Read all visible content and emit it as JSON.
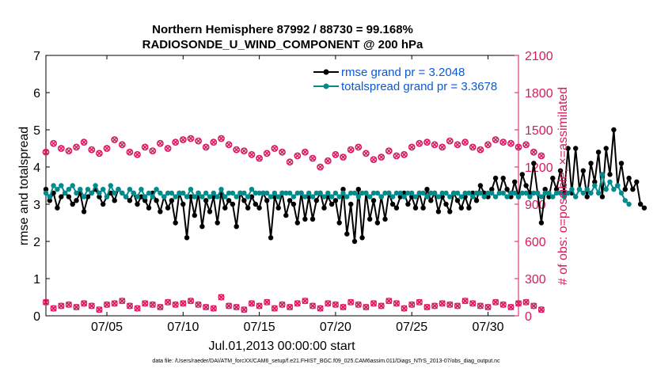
{
  "chart_data": {
    "type": "line",
    "title_line1": "Northern Hemisphere 87992 / 88730 = 99.168%",
    "title_line2": "RADIOSONDE_U_WIND_COMPONENT @ 200 hPa",
    "xlabel": "Jul.01,2013 00:00:00 start",
    "ylabel_left": "rmse and totalspread",
    "ylabel_right": "# of obs: o=possible; ×=assimilated",
    "xlim": [
      1,
      32
    ],
    "ylim_left": [
      0,
      7
    ],
    "ylim_right": [
      0,
      2100
    ],
    "x_ticks": [
      5,
      10,
      15,
      20,
      25,
      30
    ],
    "x_tick_labels": [
      "07/05",
      "07/10",
      "07/15",
      "07/20",
      "07/25",
      "07/30"
    ],
    "y_ticks_left": [
      "0",
      "1",
      "2",
      "3",
      "4",
      "5",
      "6",
      "7"
    ],
    "y_ticks_right": [
      "0",
      "300",
      "600",
      "900",
      "1200",
      "1500",
      "1800",
      "2100"
    ],
    "legend": [
      "rmse grand pr = 3.2048",
      "totalspread grand pr = 3.3678"
    ],
    "footnote": "data file: /Users/raeder/DAI/ATM_forcXX/CAM6_setup/f.e21.FHIST_BGC.f09_025.CAM6assim.011/Diags_NTrS_2013-07/obs_diag_output.nc",
    "colors": {
      "rmse": "#000000",
      "spread": "#008c8c",
      "obs": "#d81b60",
      "legend_text": "#0a5ad6",
      "right_axis": "#d81b60"
    },
    "series": [
      {
        "name": "rmse",
        "axis": "left",
        "x_start": 1.0,
        "x_step": 0.25,
        "values": [
          3.4,
          3.1,
          3.3,
          2.9,
          3.2,
          3.3,
          3.2,
          3.0,
          3.1,
          3.3,
          2.8,
          3.2,
          3.3,
          3.4,
          3.2,
          3.0,
          3.2,
          3.3,
          3.1,
          3.4,
          3.3,
          3.2,
          3.1,
          3.3,
          3.0,
          3.2,
          3.1,
          2.9,
          3.3,
          3.1,
          2.8,
          3.2,
          2.9,
          3.1,
          2.5,
          3.3,
          3.0,
          2.1,
          3.2,
          2.7,
          3.3,
          2.4,
          3.1,
          2.8,
          3.2,
          2.5,
          3.3,
          2.9,
          3.1,
          3.0,
          2.4,
          3.3,
          3.1,
          2.9,
          3.2,
          3.0,
          2.9,
          3.3,
          3.1,
          2.1,
          3.2,
          2.9,
          3.3,
          2.7,
          3.1,
          3.0,
          2.5,
          3.3,
          2.6,
          3.2,
          2.6,
          3.1,
          3.3,
          2.9,
          3.2,
          3.0,
          3.1,
          2.5,
          3.4,
          2.2,
          3.0,
          2.0,
          3.4,
          2.1,
          3.3,
          2.6,
          3.1,
          2.5,
          3.2,
          2.6,
          3.3,
          3.0,
          2.9,
          3.2,
          3.3,
          3.0,
          3.2,
          2.9,
          3.3,
          2.9,
          3.4,
          3.1,
          3.3,
          2.8,
          3.2,
          3.0,
          2.8,
          3.3,
          3.1,
          2.9,
          3.2,
          2.9,
          3.3,
          3.1,
          3.5,
          3.3,
          3.2,
          3.4,
          3.7,
          3.3,
          3.7,
          3.4,
          3.2,
          3.6,
          3.2,
          3.8,
          3.5,
          3.3,
          4.1,
          3.3,
          2.5,
          3.4,
          3.2,
          3.7,
          3.4,
          3.9,
          3.3,
          4.5,
          3.3,
          4.5,
          3.4,
          3.9,
          3.2,
          4.1,
          3.6,
          4.4,
          3.2,
          4.5,
          3.8,
          5.0,
          3.5,
          4.1,
          3.4,
          3.7,
          3.4,
          3.6,
          3.0,
          2.9
        ]
      },
      {
        "name": "totalspread",
        "axis": "left",
        "x_start": 1.0,
        "x_step": 0.25,
        "values": [
          3.3,
          3.2,
          3.5,
          3.4,
          3.5,
          3.3,
          3.4,
          3.5,
          3.3,
          3.4,
          3.2,
          3.4,
          3.3,
          3.5,
          3.3,
          3.4,
          3.2,
          3.5,
          3.3,
          3.4,
          3.3,
          3.2,
          3.4,
          3.3,
          3.2,
          3.4,
          3.2,
          3.3,
          3.2,
          3.4,
          3.3,
          3.2,
          3.3,
          3.3,
          3.2,
          3.3,
          3.3,
          3.2,
          3.4,
          3.2,
          3.3,
          3.2,
          3.3,
          3.2,
          3.3,
          3.2,
          3.4,
          3.2,
          3.3,
          3.3,
          3.2,
          3.3,
          3.3,
          3.2,
          3.4,
          3.3,
          3.3,
          3.3,
          3.3,
          3.2,
          3.3,
          3.2,
          3.3,
          3.3,
          3.3,
          3.2,
          3.3,
          3.3,
          3.2,
          3.3,
          3.2,
          3.3,
          3.3,
          3.2,
          3.3,
          3.2,
          3.3,
          3.2,
          3.3,
          3.2,
          3.3,
          3.3,
          3.2,
          3.3,
          3.3,
          3.2,
          3.3,
          3.3,
          3.2,
          3.3,
          3.3,
          3.2,
          3.3,
          3.3,
          3.2,
          3.3,
          3.3,
          3.2,
          3.3,
          3.3,
          3.2,
          3.3,
          3.3,
          3.2,
          3.3,
          3.3,
          3.2,
          3.3,
          3.3,
          3.2,
          3.3,
          3.3,
          3.2,
          3.3,
          3.3,
          3.2,
          3.3,
          3.3,
          3.2,
          3.3,
          3.3,
          3.2,
          3.3,
          3.3,
          3.2,
          3.3,
          3.3,
          3.2,
          3.3,
          3.3,
          3.2,
          3.3,
          3.3,
          3.2,
          3.3,
          3.3,
          3.2,
          3.3,
          3.4,
          3.2,
          3.4,
          3.3,
          3.4,
          3.3,
          3.5,
          3.3,
          3.8,
          3.4,
          3.6,
          3.4,
          3.5,
          3.3,
          3.1,
          3.0
        ]
      },
      {
        "name": "obs_possible",
        "axis": "right",
        "x_start": 1.0,
        "x_step": 0.5,
        "values": [
          1320,
          1390,
          1350,
          1330,
          1360,
          1400,
          1340,
          1310,
          1350,
          1420,
          1380,
          1320,
          1300,
          1360,
          1330,
          1390,
          1350,
          1400,
          1420,
          1430,
          1410,
          1360,
          1400,
          1430,
          1380,
          1340,
          1330,
          1300,
          1270,
          1310,
          1350,
          1320,
          1240,
          1290,
          1320,
          1270,
          1200,
          1250,
          1300,
          1280,
          1340,
          1360,
          1310,
          1260,
          1280,
          1330,
          1290,
          1300,
          1360,
          1390,
          1400,
          1380,
          1360,
          1410,
          1380,
          1400,
          1360,
          1340,
          1380,
          1420,
          1400,
          1390,
          1360,
          1380,
          1320,
          1290
        ]
      },
      {
        "name": "obs_assimilated",
        "axis": "right",
        "x_start": 1.0,
        "x_step": 0.5,
        "values": [
          110,
          60,
          80,
          90,
          70,
          100,
          80,
          50,
          90,
          100,
          120,
          80,
          60,
          100,
          90,
          70,
          110,
          90,
          100,
          120,
          90,
          70,
          60,
          150,
          80,
          70,
          50,
          100,
          80,
          110,
          60,
          90,
          70,
          100,
          120,
          80,
          60,
          100,
          90,
          70,
          110,
          90,
          70,
          100,
          80,
          120,
          100,
          60,
          90,
          110,
          70,
          80,
          100,
          90,
          80,
          120,
          100,
          80,
          70,
          110,
          90,
          70,
          100,
          110,
          80,
          50
        ]
      }
    ]
  }
}
